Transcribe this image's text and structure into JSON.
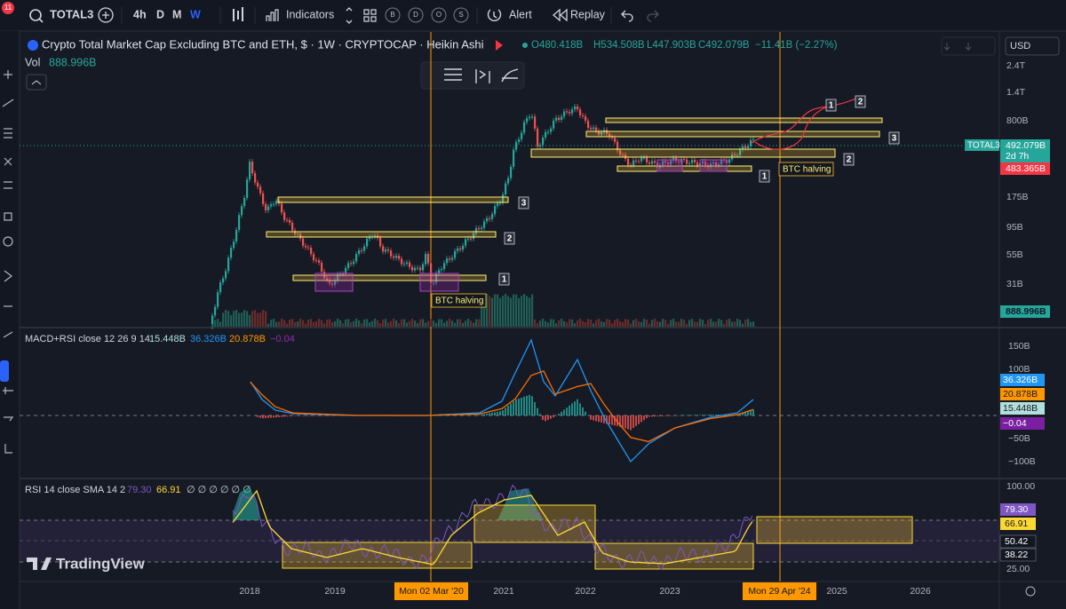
{
  "toolbar": {
    "symbol": "TOTAL3",
    "notification_count": "11",
    "intervals": [
      "4h",
      "D",
      "M",
      "W"
    ],
    "indicators": "Indicators",
    "buttons": [
      "B",
      "D",
      "O",
      "S"
    ],
    "alert": "Alert",
    "replay": "Replay"
  },
  "legend": {
    "title": "Crypto Total Market Cap Excluding BTC and ETH, $ · 1W · CRYPTOCAP · Heikin Ashi",
    "open": "O480.418B",
    "high": "H534.508B",
    "low": "L447.903B",
    "close": "C492.079B",
    "change": "−11.41B (−2.27%)",
    "volume_label": "Vol",
    "volume_value": "888.996B"
  },
  "currency": "USD",
  "price_axis": {
    "ticks": [
      "2.4T",
      "1.4T",
      "800B",
      "175B",
      "95B",
      "55B",
      "31B"
    ],
    "symbol_tag": "TOTAL3",
    "last_price": "492.079B",
    "countdown": "2d 7h",
    "previous_close": "483.365B",
    "volume_tag": "888.996B"
  },
  "annotations": {
    "halving_labels": [
      "BTC halving",
      "BTC halving"
    ],
    "markers": [
      "1",
      "2",
      "3",
      "1",
      "2",
      "3",
      "1",
      "2"
    ]
  },
  "macd": {
    "label": "MACD+RSI close 12 26 9 14",
    "values": [
      "15.448B",
      "36.326B",
      "20.878B",
      "−0.04"
    ],
    "axis_ticks": [
      "150B",
      "100B",
      "−50B",
      "−100B"
    ],
    "axis_tags": [
      "36.326B",
      "20.878B",
      "15.448B",
      "−0.04"
    ]
  },
  "rsi": {
    "label": "RSI 14 close SMA 14 2",
    "values": [
      "79.30",
      "66.91"
    ],
    "empty_values": "∅ ∅ ∅ ∅ ∅ ∅",
    "axis_ticks": [
      "100.00",
      "25.00"
    ],
    "axis_tags": [
      "79.30",
      "66.91",
      "50.42",
      "38.22"
    ]
  },
  "time_axis": {
    "ticks": [
      "2018",
      "2019",
      "2021",
      "2022",
      "2023",
      "2025",
      "2026"
    ],
    "cursor_labels": [
      "Mon 02 Mar '20",
      "Mon 29 Apr '24"
    ]
  },
  "watermark": "TradingView"
}
